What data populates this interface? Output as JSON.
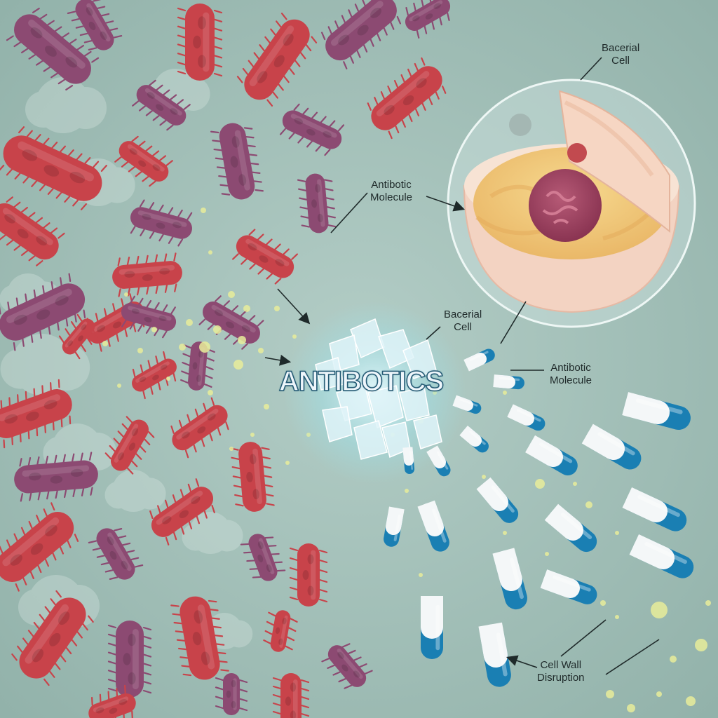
{
  "title": "ANTIBOTICS",
  "labels": {
    "cell_top": {
      "line1": "Bacerial",
      "line2": "Cell"
    },
    "molecule_mid": {
      "line1": "Antibotic",
      "line2": "Molecule"
    },
    "cell_mid": {
      "line1": "Bacerial",
      "line2": "Cell"
    },
    "molecule_right": {
      "line1": "Antibotic",
      "line2": "Molecule"
    },
    "wall": {
      "line1": "Cell Wall",
      "line2": "Disruption"
    }
  },
  "colors": {
    "background": "#9fbcb4",
    "bacteria_red": "#c8434a",
    "bacteria_purple": "#8c4a72",
    "capsule_blue": "#1a7fb3",
    "capsule_white": "#f4f7f8",
    "spark_yellow": "#e8ec9a",
    "crystal": "#dff3f8",
    "cell_membrane": "#f3d7c6",
    "cytoplasm": "#f0c477",
    "nucleus": "#a24a64"
  },
  "icons": [
    "rod-bacterium-icon",
    "capsule-pill-icon",
    "crystal-icon",
    "cell-cross-section-icon"
  ]
}
